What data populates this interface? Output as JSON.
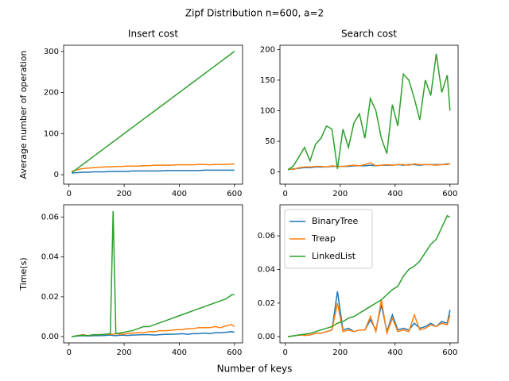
{
  "title": "Zipf Distribution n=600, a=2",
  "xlabel": "Number of keys",
  "chart_data": [
    {
      "type": "line",
      "title": "Insert cost",
      "ylabel": "Average number of operation",
      "x": [
        10,
        30,
        50,
        70,
        90,
        110,
        130,
        150,
        170,
        190,
        210,
        230,
        250,
        270,
        290,
        310,
        330,
        350,
        370,
        390,
        410,
        430,
        450,
        470,
        490,
        510,
        530,
        550,
        570,
        590,
        600
      ],
      "xlim": [
        -19.5,
        629.5
      ],
      "xticks": [
        0,
        200,
        400,
        600
      ],
      "ylim": [
        -23,
        315
      ],
      "yticks": [
        0,
        100,
        200,
        300
      ],
      "series": [
        {
          "color": "#1f77b4",
          "values": [
            4,
            5,
            6,
            6,
            7,
            7,
            7,
            8,
            8,
            8,
            8,
            9,
            9,
            9,
            9,
            9,
            9,
            10,
            10,
            10,
            10,
            10,
            10,
            10,
            11,
            11,
            11,
            11,
            11,
            11,
            11
          ]
        },
        {
          "color": "#ff7f0e",
          "values": [
            8,
            12,
            15,
            16,
            17,
            18,
            19,
            19,
            20,
            20,
            21,
            21,
            21,
            22,
            22,
            23,
            23,
            23,
            23,
            24,
            24,
            24,
            24,
            25,
            25,
            24,
            25,
            25,
            25,
            26,
            26
          ]
        },
        {
          "color": "#2ca02c",
          "values": [
            5,
            15,
            25,
            35,
            45,
            55,
            65,
            75,
            85,
            95,
            105,
            115,
            125,
            135,
            145,
            155,
            165,
            175,
            185,
            195,
            205,
            215,
            225,
            235,
            245,
            255,
            265,
            275,
            285,
            295,
            300
          ]
        }
      ]
    },
    {
      "type": "line",
      "title": "Search cost",
      "x": [
        10,
        30,
        50,
        70,
        90,
        110,
        130,
        150,
        170,
        190,
        210,
        230,
        250,
        270,
        290,
        310,
        330,
        350,
        370,
        390,
        410,
        430,
        450,
        470,
        490,
        510,
        530,
        550,
        570,
        590,
        600
      ],
      "xlim": [
        -19.5,
        629.5
      ],
      "xticks": [
        0,
        200,
        400,
        600
      ],
      "ylim": [
        -20,
        207
      ],
      "yticks": [
        0,
        50,
        100,
        150,
        200
      ],
      "series": [
        {
          "color": "#1f77b4",
          "values": [
            4,
            5,
            6,
            7,
            7,
            8,
            8,
            8,
            9,
            9,
            9,
            9,
            10,
            10,
            10,
            11,
            10,
            11,
            11,
            11,
            12,
            11,
            12,
            12,
            11,
            12,
            12,
            12,
            12,
            13,
            13
          ]
        },
        {
          "color": "#ff7f0e",
          "values": [
            5,
            4,
            7,
            8,
            8,
            9,
            9,
            8,
            10,
            9,
            9,
            10,
            11,
            10,
            12,
            15,
            10,
            11,
            12,
            11,
            12,
            12,
            11,
            13,
            12,
            12,
            12,
            11,
            12,
            12,
            14
          ]
        },
        {
          "color": "#2ca02c",
          "values": [
            3,
            10,
            25,
            40,
            18,
            45,
            55,
            75,
            70,
            5,
            70,
            40,
            80,
            95,
            55,
            120,
            100,
            55,
            30,
            110,
            75,
            160,
            150,
            120,
            85,
            150,
            125,
            193,
            130,
            158,
            100
          ]
        }
      ]
    },
    {
      "type": "line",
      "ylabel": "Time(s)",
      "x": [
        10,
        30,
        50,
        70,
        90,
        110,
        130,
        150,
        160,
        170,
        190,
        210,
        230,
        250,
        270,
        290,
        310,
        330,
        350,
        370,
        390,
        410,
        430,
        450,
        470,
        490,
        510,
        530,
        550,
        570,
        590,
        600
      ],
      "xlim": [
        -19.5,
        629.5
      ],
      "xticks": [
        0,
        200,
        400,
        600
      ],
      "ylim": [
        -0.00315,
        0.0662
      ],
      "yticks": [
        {
          "value": 0,
          "label": "0.00"
        },
        {
          "value": 0.02,
          "label": "0.02"
        },
        {
          "value": 0.04,
          "label": "0.04"
        },
        {
          "value": 0.06,
          "label": "0.06"
        }
      ],
      "series": [
        {
          "color": "#1f77b4",
          "values": [
            0,
            0.0003,
            0.0005,
            0.0003,
            0.0005,
            0.0005,
            0.0006,
            0.0008,
            0.0006,
            0.0005,
            0.0008,
            0.0006,
            0.0008,
            0.0009,
            0.001,
            0.001,
            0.0008,
            0.001,
            0.0012,
            0.0012,
            0.0013,
            0.0015,
            0.0012,
            0.0015,
            0.0015,
            0.0018,
            0.0015,
            0.002,
            0.002,
            0.0022,
            0.0025,
            0.0022
          ]
        },
        {
          "color": "#ff7f0e",
          "values": [
            0,
            0.0005,
            0.001,
            0.0005,
            0.001,
            0.001,
            0.0012,
            0.0012,
            0.0012,
            0.0015,
            0.0012,
            0.0015,
            0.0018,
            0.002,
            0.002,
            0.0025,
            0.0025,
            0.003,
            0.003,
            0.0032,
            0.0035,
            0.0035,
            0.004,
            0.004,
            0.0045,
            0.0045,
            0.0045,
            0.005,
            0.0045,
            0.0055,
            0.006,
            0.005
          ]
        },
        {
          "color": "#2ca02c",
          "values": [
            0,
            0.0005,
            0.0008,
            0.0005,
            0.001,
            0.001,
            0.0012,
            0.0015,
            0.063,
            0.0015,
            0.002,
            0.0025,
            0.003,
            0.004,
            0.005,
            0.005,
            0.006,
            0.007,
            0.008,
            0.009,
            0.01,
            0.011,
            0.012,
            0.013,
            0.014,
            0.015,
            0.016,
            0.017,
            0.018,
            0.019,
            0.021,
            0.021
          ]
        }
      ]
    },
    {
      "type": "line",
      "legend": "upper left",
      "x": [
        10,
        30,
        50,
        70,
        90,
        110,
        130,
        150,
        170,
        190,
        210,
        230,
        250,
        270,
        290,
        310,
        330,
        350,
        370,
        390,
        410,
        430,
        450,
        470,
        490,
        510,
        530,
        550,
        570,
        590,
        600
      ],
      "xlim": [
        -19.5,
        629.5
      ],
      "xticks": [
        0,
        200,
        400,
        600
      ],
      "ylim": [
        -0.0037,
        0.0785
      ],
      "yticks": [
        {
          "value": 0,
          "label": "0.00"
        },
        {
          "value": 0.02,
          "label": "0.02"
        },
        {
          "value": 0.04,
          "label": "0.04"
        },
        {
          "value": 0.06,
          "label": "0.06"
        }
      ],
      "series": [
        {
          "name": "BinaryTree",
          "color": "#1f77b4",
          "values": [
            0,
            0.0005,
            0.001,
            0.0008,
            0.001,
            0.002,
            0.002,
            0.003,
            0.004,
            0.027,
            0.004,
            0.005,
            0.003,
            0.004,
            0.004,
            0.01,
            0.004,
            0.019,
            0.003,
            0.013,
            0.004,
            0.005,
            0.004,
            0.008,
            0.005,
            0.006,
            0.008,
            0.006,
            0.009,
            0.008,
            0.016
          ]
        },
        {
          "name": "Treap",
          "color": "#ff7f0e",
          "values": [
            0,
            0.0005,
            0.001,
            0.0008,
            0.001,
            0.002,
            0.002,
            0.003,
            0.004,
            0.02,
            0.003,
            0.004,
            0.003,
            0.004,
            0.004,
            0.012,
            0.003,
            0.022,
            0.002,
            0.011,
            0.003,
            0.004,
            0.003,
            0.013,
            0.004,
            0.005,
            0.007,
            0.006,
            0.008,
            0.007,
            0.013
          ]
        },
        {
          "name": "LinkedList",
          "color": "#2ca02c",
          "values": [
            0,
            0.0005,
            0.001,
            0.0015,
            0.002,
            0.003,
            0.004,
            0.005,
            0.006,
            0.008,
            0.009,
            0.011,
            0.012,
            0.014,
            0.016,
            0.018,
            0.02,
            0.022,
            0.025,
            0.028,
            0.03,
            0.036,
            0.04,
            0.042,
            0.045,
            0.05,
            0.055,
            0.058,
            0.065,
            0.072,
            0.071
          ]
        }
      ]
    }
  ]
}
